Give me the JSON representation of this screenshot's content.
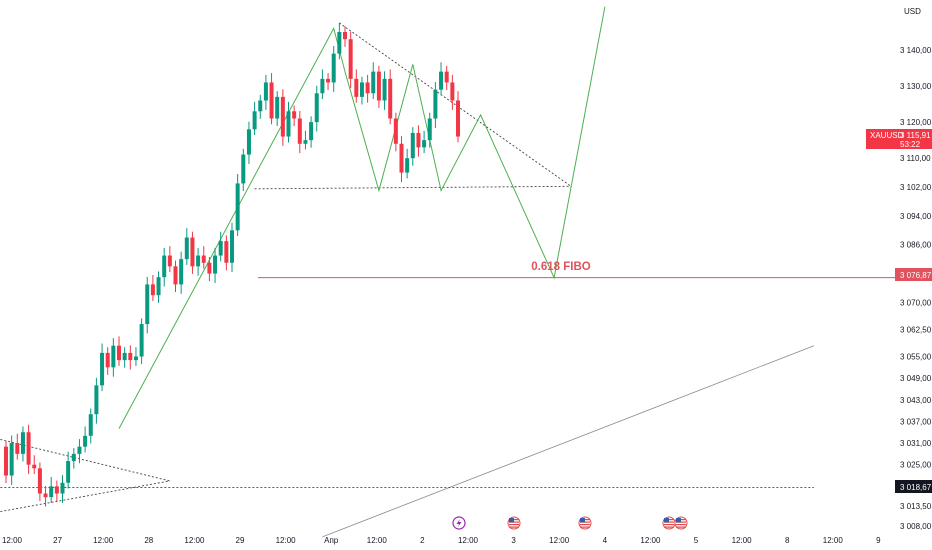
{
  "header": {
    "currency": "USD"
  },
  "price_badges": {
    "symbol": "XAUUSD",
    "price": "3 115,91",
    "countdown": "53:22",
    "fibo_level": "3 076,87",
    "support_level": "3 018,67"
  },
  "annotation": {
    "fibo_label": "0.618 FIBO"
  },
  "colors": {
    "bull": "#089981",
    "bear": "#f23645",
    "fibo": "#e0525e",
    "projection": "#4caf50",
    "axis_text": "#131722",
    "grid_line": "#2a2e39"
  },
  "event_icons": [
    "lightning-icon",
    "us-flag-icon",
    "us-flag-icon",
    "us-flag-icon",
    "us-flag-icon"
  ],
  "chart_data": {
    "type": "candlestick",
    "symbol": "XAUUSD",
    "timeframe": "1H",
    "x_axis_ticks": [
      "12:00",
      "27",
      "12:00",
      "28",
      "12:00",
      "29",
      "12:00",
      "Апр",
      "12:00",
      "2",
      "12:00",
      "3",
      "12:00",
      "4",
      "12:00",
      "5",
      "12:00",
      "8",
      "12:00",
      "9"
    ],
    "y_axis_ticks": [
      "3 140,00",
      "3 130,00",
      "3 120,00",
      "3 110,00",
      "3 102,00",
      "3 094,00",
      "3 086,00",
      "3 070,00",
      "3 062,50",
      "3 055,00",
      "3 049,00",
      "3 043,00",
      "3 037,00",
      "3 031,00",
      "3 025,00",
      "3 013,50",
      "3 008,00"
    ],
    "y_axis_tick_values": [
      3140,
      3130,
      3120,
      3110,
      3102,
      3094,
      3086,
      3070,
      3062.5,
      3055,
      3049,
      3043,
      3037,
      3031,
      3025,
      3013.5,
      3008
    ],
    "ylim": [
      3005,
      3152
    ],
    "last_price": 3115.91,
    "fibo_level": 3076.87,
    "support_level": 3018.67,
    "candles_close": [
      3022,
      3031,
      3028,
      3034,
      3025,
      3024,
      3017,
      3016,
      3019,
      3017,
      3020,
      3026,
      3028,
      3030,
      3033,
      3039,
      3047,
      3056,
      3052,
      3058,
      3054,
      3056,
      3054,
      3055,
      3064,
      3075,
      3072,
      3077,
      3083,
      3080,
      3075,
      3082,
      3088,
      3080,
      3083,
      3081,
      3078,
      3083,
      3087,
      3081,
      3090,
      3103,
      3111,
      3118,
      3123,
      3126,
      3131,
      3121,
      3127,
      3116,
      3123,
      3121,
      3114,
      3115,
      3120,
      3128,
      3132,
      3131,
      3139,
      3145,
      3143,
      3132,
      3127,
      3131,
      3128,
      3134,
      3126,
      3132,
      3121,
      3114,
      3106,
      3110,
      3117,
      3113,
      3115,
      3121,
      3129,
      3134,
      3131,
      3126,
      3116
    ],
    "trendlines": [
      {
        "name": "upper-resistance",
        "points": [
          [
            59,
            3147.5
          ],
          [
            100,
            3102.2
          ]
        ]
      },
      {
        "name": "neckline",
        "points": [
          [
            44,
            3101.5
          ],
          [
            100,
            3102.2
          ]
        ]
      },
      {
        "name": "rising-trendline",
        "points": [
          [
            56,
            3005
          ],
          [
            143,
            3058
          ]
        ]
      },
      {
        "name": "triangle-upper",
        "points": [
          [
            -1,
            3032
          ],
          [
            29,
            3020.5
          ]
        ]
      },
      {
        "name": "triangle-lower",
        "points": [
          [
            -1,
            3012
          ],
          [
            29,
            3020.5
          ]
        ]
      },
      {
        "name": "support-dotted",
        "points": [
          [
            -1,
            3018.67
          ],
          [
            143,
            3018.67
          ]
        ]
      }
    ],
    "projection_path": [
      [
        20,
        3035
      ],
      [
        58,
        3146
      ],
      [
        60,
        3134
      ],
      [
        66,
        3101
      ],
      [
        72,
        3136
      ],
      [
        77,
        3101
      ],
      [
        84,
        3122
      ],
      [
        97,
        3076.87
      ],
      [
        106,
        3152
      ]
    ]
  }
}
